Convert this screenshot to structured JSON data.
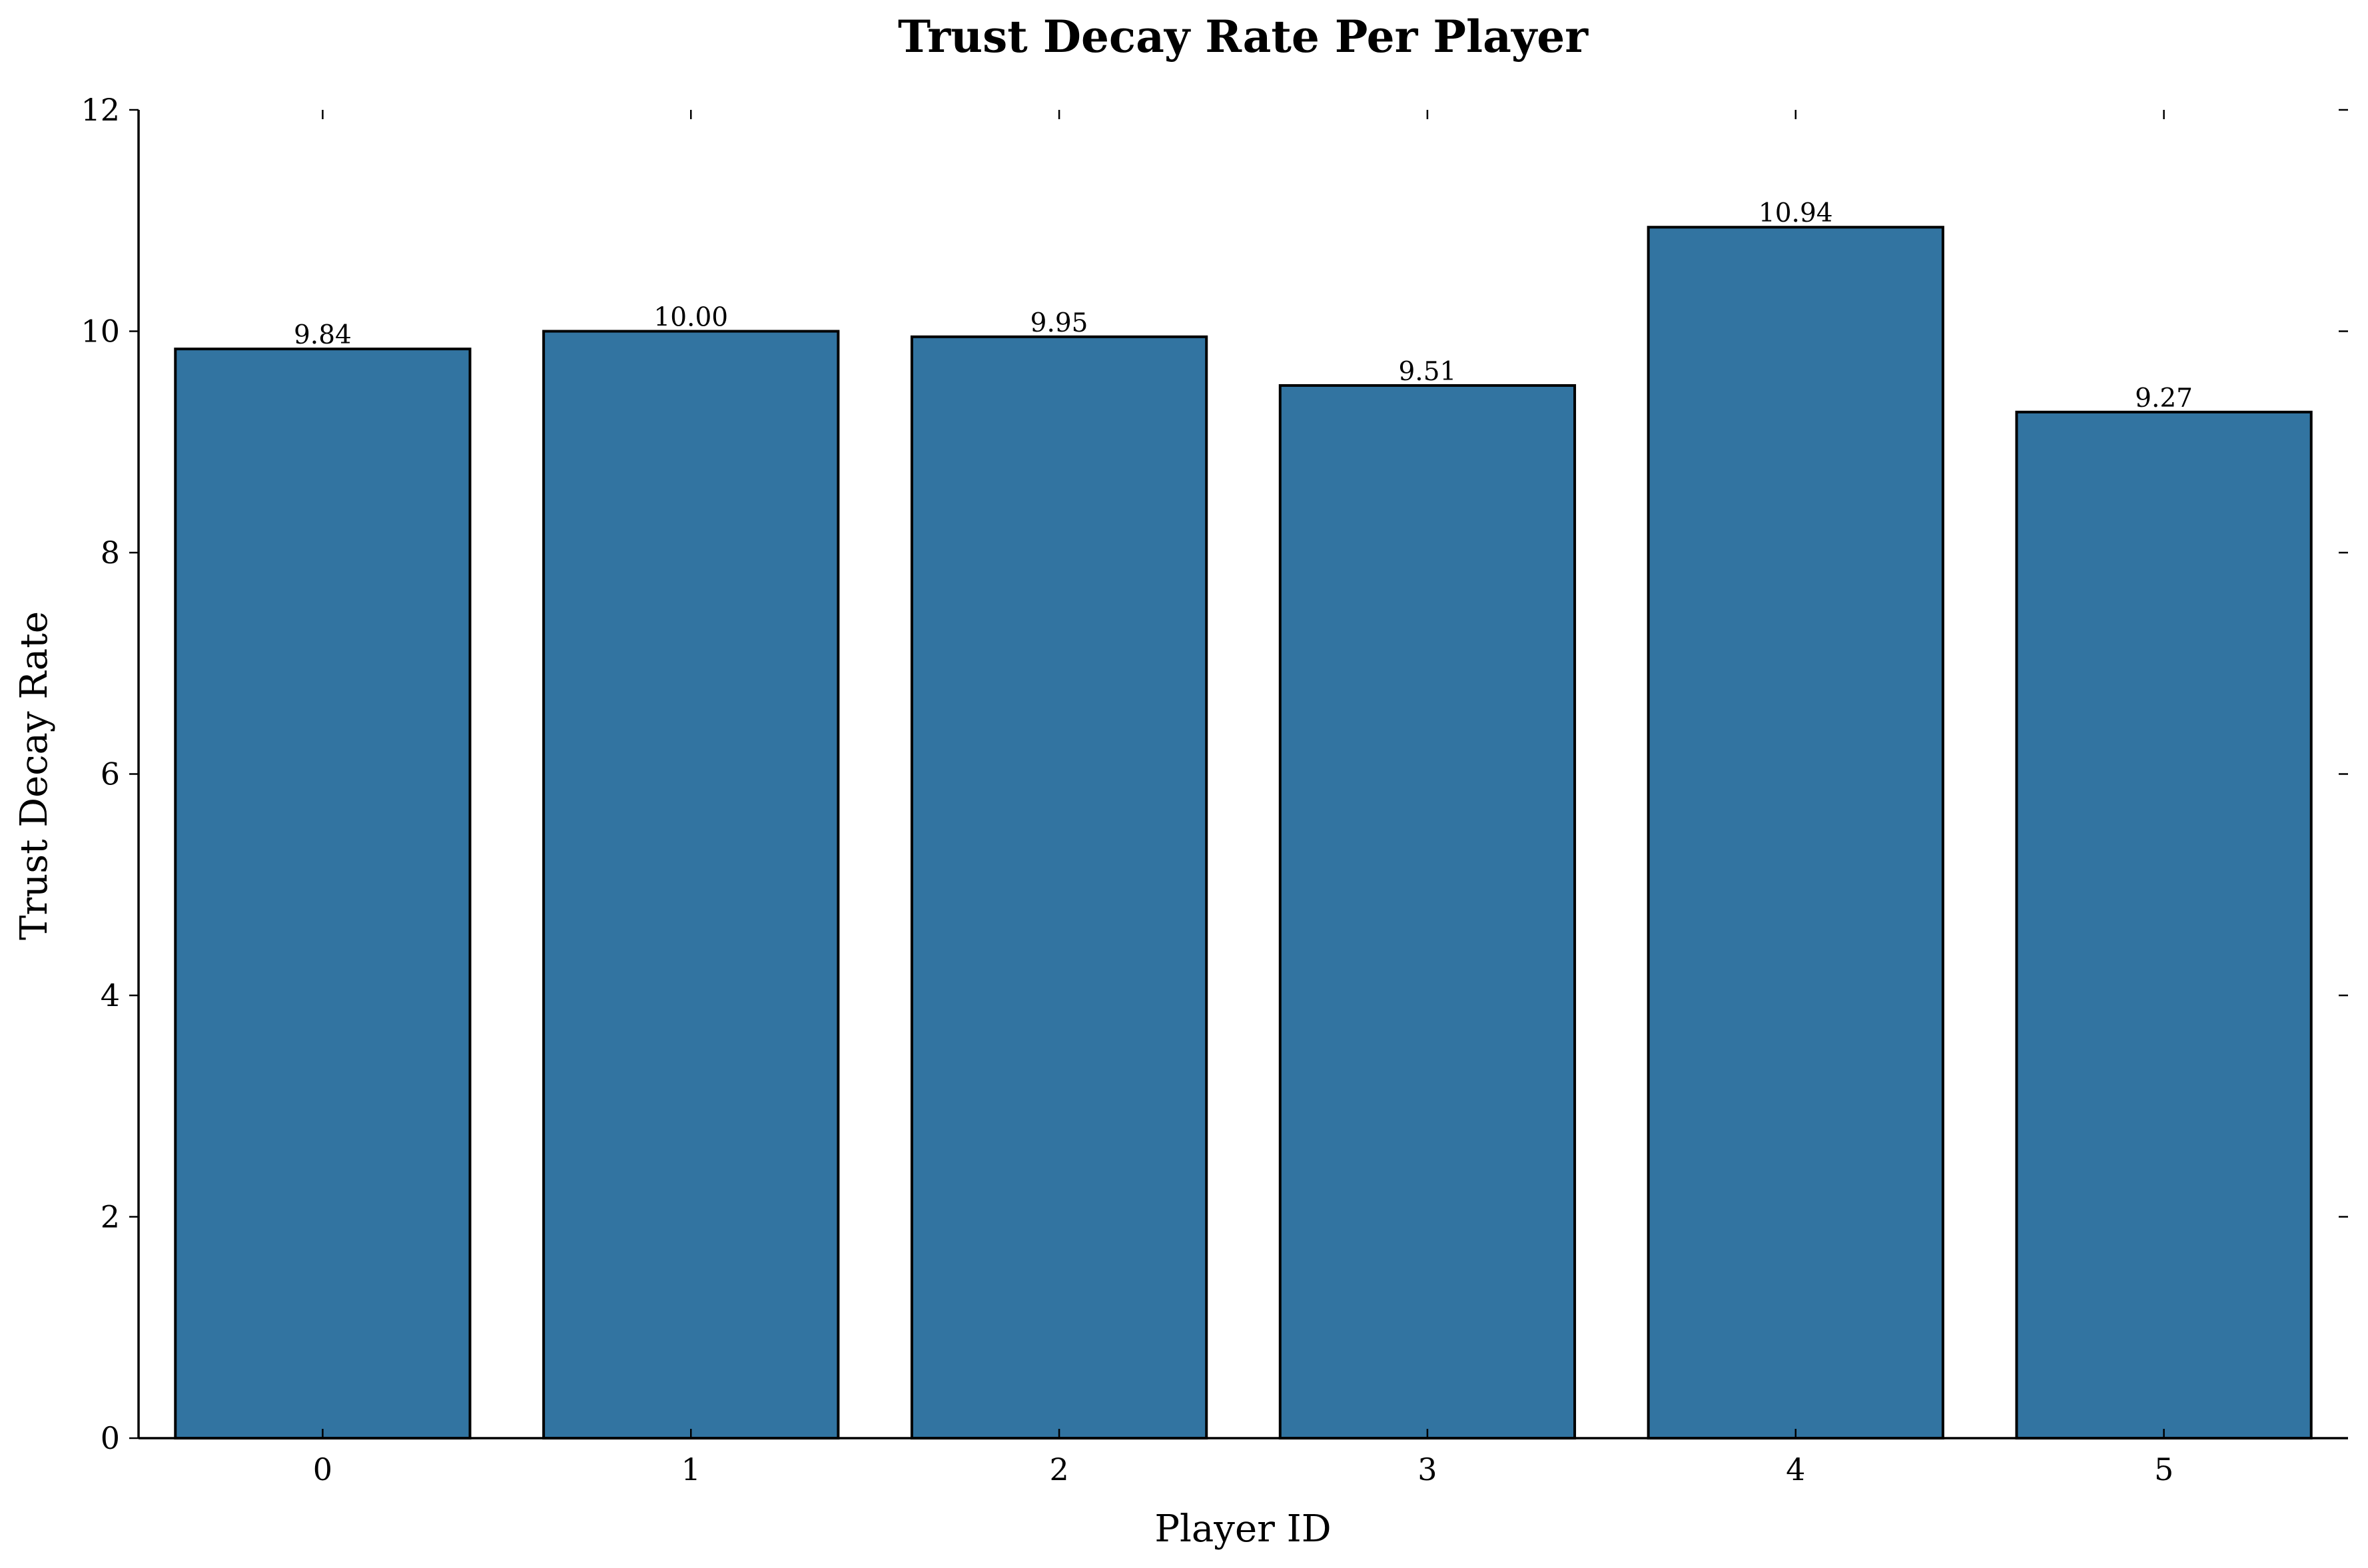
{
  "chart_data": {
    "type": "bar",
    "title": "Trust Decay Rate Per Player",
    "xlabel": "Player ID",
    "ylabel": "Trust Decay Rate",
    "categories": [
      "0",
      "1",
      "2",
      "3",
      "4",
      "5"
    ],
    "values": [
      9.84,
      10.0,
      9.95,
      9.51,
      10.94,
      9.27
    ],
    "value_labels": [
      "9.84",
      "10.00",
      "9.95",
      "9.51",
      "10.94",
      "9.27"
    ],
    "ylim": [
      0,
      12
    ],
    "yticks": [
      0,
      2,
      4,
      6,
      8,
      10,
      12
    ],
    "ytick_labels": [
      "0",
      "2",
      "4",
      "6",
      "8",
      "10",
      "12"
    ],
    "grid": false,
    "bar_color": "#3274a1",
    "edge_color": "#000000"
  }
}
